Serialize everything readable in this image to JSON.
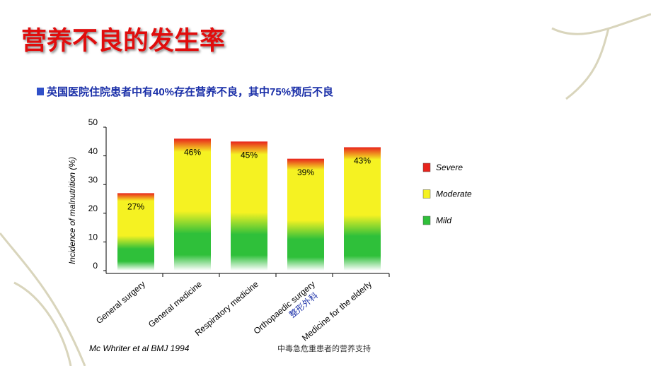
{
  "chart_data": {
    "type": "bar",
    "title": "营养不良的发生率",
    "subtitle": "英国医院住院患者中有40%存在营养不良，其中75%预后不良",
    "y_label": "Incidence of malnutrition (%)",
    "categories": [
      "General surgery",
      "General medicine",
      "Respiratory medicine",
      "Orthopaedic surgery",
      "Medicine for the elderly"
    ],
    "category_notes": [
      null,
      null,
      null,
      "整形外科",
      null
    ],
    "values": [
      27,
      46,
      45,
      39,
      43
    ],
    "value_labels": [
      "27%",
      "46%",
      "45%",
      "39%",
      "43%"
    ],
    "ylim": [
      0,
      50
    ],
    "yticks": [
      0,
      10,
      20,
      30,
      40,
      50
    ],
    "legend": [
      {
        "name": "Severe",
        "color": "#e8231c"
      },
      {
        "name": "Moderate",
        "color": "#f5f222"
      },
      {
        "name": "Mild",
        "color": "#2fc03a"
      }
    ],
    "source": "Mc Whriter et al BMJ 1994",
    "footer": "中毒急危重患者的营养支持"
  }
}
